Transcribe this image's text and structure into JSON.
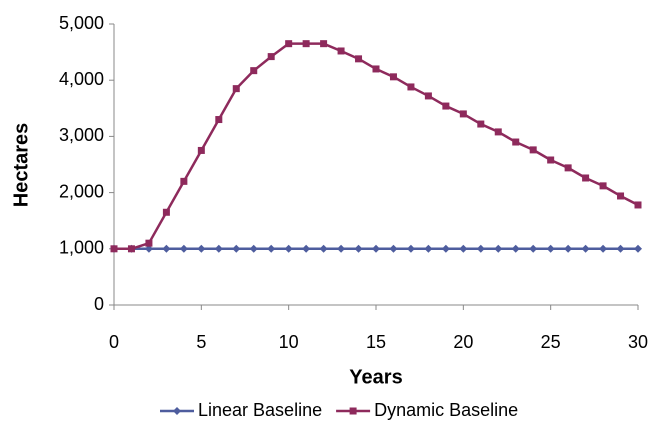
{
  "chart_data": {
    "type": "line",
    "x_label": "Years",
    "y_label": "Hectares",
    "x": [
      0,
      1,
      2,
      3,
      4,
      5,
      6,
      7,
      8,
      9,
      10,
      11,
      12,
      13,
      14,
      15,
      16,
      17,
      18,
      19,
      20,
      21,
      22,
      23,
      24,
      25,
      26,
      27,
      28,
      29,
      30
    ],
    "series": [
      {
        "name": "Linear Baseline",
        "color": "#4e5d9e",
        "marker": "diamond",
        "values": [
          1000,
          1000,
          1000,
          1000,
          1000,
          1000,
          1000,
          1000,
          1000,
          1000,
          1000,
          1000,
          1000,
          1000,
          1000,
          1000,
          1000,
          1000,
          1000,
          1000,
          1000,
          1000,
          1000,
          1000,
          1000,
          1000,
          1000,
          1000,
          1000,
          1000,
          1000
        ]
      },
      {
        "name": "Dynamic Baseline",
        "color": "#8e2a5c",
        "marker": "square",
        "values": [
          1000,
          1000,
          1100,
          1650,
          2200,
          2750,
          3300,
          3850,
          4170,
          4420,
          4650,
          4650,
          4650,
          4520,
          4380,
          4200,
          4060,
          3880,
          3720,
          3540,
          3400,
          3220,
          3080,
          2900,
          2760,
          2580,
          2440,
          2260,
          2120,
          1940,
          1780
        ]
      }
    ],
    "xlim": [
      0,
      30
    ],
    "xticks": [
      0,
      5,
      10,
      15,
      20,
      25,
      30
    ],
    "ylim": [
      0,
      5000
    ],
    "yticks": [
      0,
      {
        "value": 1000,
        "label": "1,000"
      },
      {
        "value": 2000,
        "label": "2,000"
      },
      {
        "value": 3000,
        "label": "3,000"
      },
      {
        "value": 4000,
        "label": "4,000"
      },
      {
        "value": 5000,
        "label": "5,000"
      }
    ],
    "grid": false,
    "legend": "bottom"
  }
}
